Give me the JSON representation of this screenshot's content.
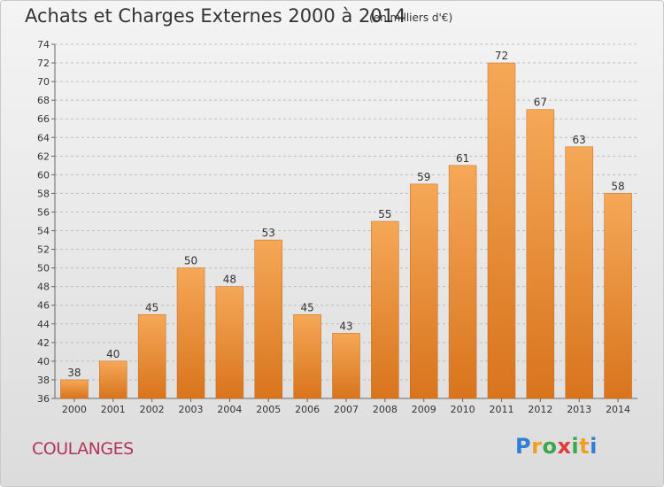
{
  "header": {
    "title": "Achats et Charges Externes 2000 à 2014",
    "subtitle": "(en milliers d'€)"
  },
  "footer": {
    "place": "COULANGES",
    "logo": {
      "letters": [
        "P",
        "r",
        "o",
        "x",
        "i",
        "t",
        "i"
      ],
      "colors": [
        "#2f7fd8",
        "#f0a020",
        "#3aa84a",
        "#e03a3a",
        "#3aa84a",
        "#f0a020",
        "#2f7fd8"
      ]
    }
  },
  "colors": {
    "bar_top": "#f5a857",
    "bar_bottom": "#d9741d",
    "grid": "#bdbdbd"
  },
  "chart_data": {
    "type": "bar",
    "title": "Achats et Charges Externes 2000 à 2014",
    "subtitle": "(en milliers d'€)",
    "xlabel": "",
    "ylabel": "",
    "categories": [
      "2000",
      "2001",
      "2002",
      "2003",
      "2004",
      "2005",
      "2006",
      "2007",
      "2008",
      "2009",
      "2010",
      "2011",
      "2012",
      "2013",
      "2014"
    ],
    "values": [
      38,
      40,
      45,
      50,
      48,
      53,
      45,
      43,
      55,
      59,
      61,
      72,
      67,
      63,
      58
    ],
    "data_labels": [
      "38",
      "40",
      "45",
      "50",
      "48",
      "53",
      "45",
      "43",
      "55",
      "59",
      "61",
      "72",
      "67",
      "63",
      "58"
    ],
    "ylim": [
      36,
      74
    ],
    "yticks": [
      "36",
      "38",
      "40",
      "42",
      "44",
      "46",
      "48",
      "50",
      "52",
      "54",
      "56",
      "58",
      "60",
      "62",
      "64",
      "66",
      "68",
      "70",
      "72",
      "74"
    ],
    "grid": true,
    "legend": "none"
  }
}
